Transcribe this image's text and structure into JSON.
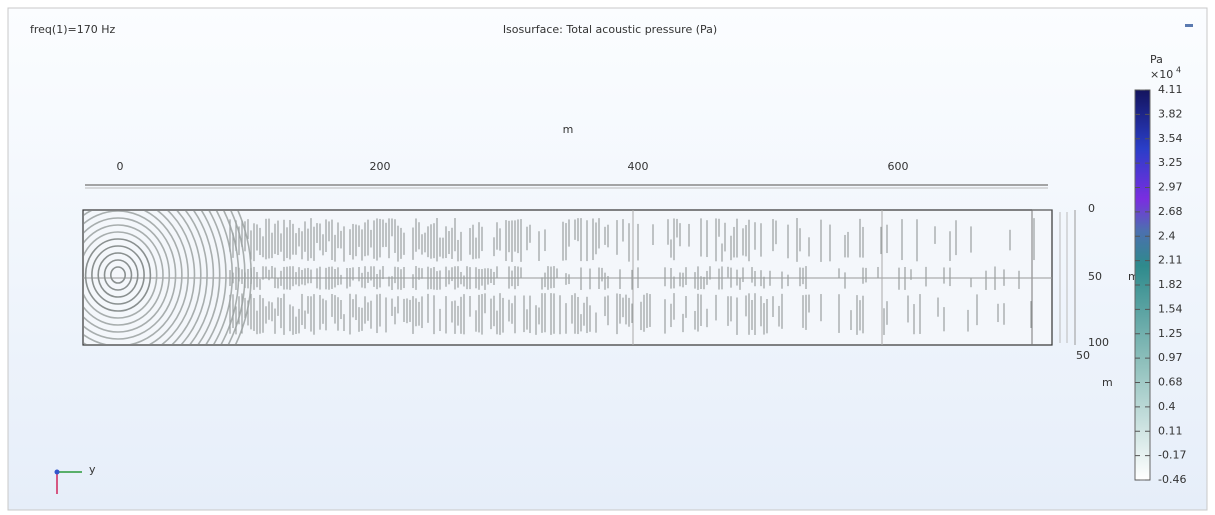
{
  "plot": {
    "parameter": "freq(1)=170 Hz",
    "title": "Isosurface: Total acoustic pressure (Pa)",
    "x_axis": {
      "label": "m",
      "ticks": [
        "0",
        "200",
        "400",
        "600"
      ]
    },
    "y_axis": {
      "label": "m",
      "ticks": [
        "0",
        "50",
        "100"
      ]
    },
    "z_axis": {
      "label": "m",
      "ticks": [
        "50"
      ]
    },
    "triad": {
      "label": "y"
    }
  },
  "colorbar": {
    "unit": "Pa",
    "multiplier": "×10",
    "exponent": "4",
    "labels": [
      "4.11",
      "3.82",
      "3.54",
      "3.25",
      "2.97",
      "2.68",
      "2.4",
      "2.11",
      "1.82",
      "1.54",
      "1.25",
      "0.97",
      "0.68",
      "0.4",
      "0.11",
      "-0.17",
      "-0.46"
    ]
  }
}
